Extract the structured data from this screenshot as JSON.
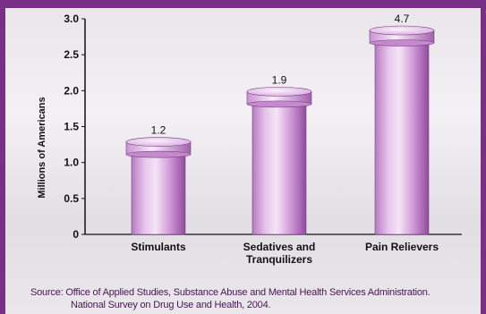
{
  "chart_data": {
    "type": "bar",
    "categories": [
      "Stimulants",
      "Sedatives and\nTranquilizers",
      "Pain Relievers"
    ],
    "category_lines": [
      [
        "Stimulants"
      ],
      [
        "Sedatives and",
        "Tranquilizers"
      ],
      [
        "Pain Relievers"
      ]
    ],
    "values": [
      1.2,
      1.9,
      4.7
    ],
    "data_labels": [
      "1.2",
      "1.9",
      "4.7"
    ],
    "title": "",
    "xlabel": "",
    "ylabel": "Millions of Americans",
    "ylim": [
      0,
      3.0
    ],
    "yticks": [
      "0",
      "0.5",
      "1.0",
      "1.5",
      "2.0",
      "2.5",
      "3.0"
    ],
    "grid": false,
    "legend": "none",
    "colors": {
      "bar_light": "#f3d9f5",
      "bar_mid": "#c98fd1",
      "bar_dark": "#8e4b9c",
      "frame": "#7a2f86",
      "source_text": "#4b1454"
    }
  },
  "source": {
    "line1": "Source:  Office of Applied Studies, Substance Abuse and Mental Health Services Administration.",
    "line2": "National Survey on Drug Use and Health, 2004."
  }
}
